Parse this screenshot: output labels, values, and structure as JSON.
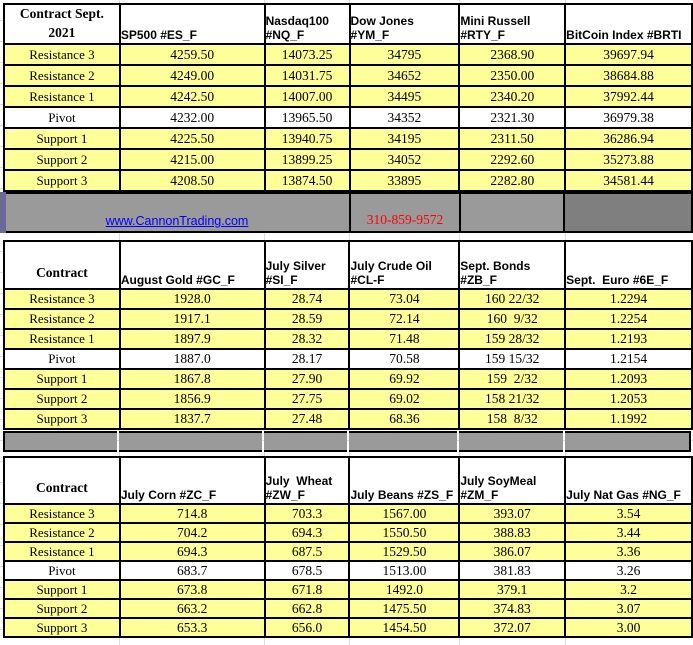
{
  "band": {
    "link_text": "www.CannonTrading.com",
    "phone": "310-859-9572"
  },
  "colors": {
    "row_fill": "#FFFF99",
    "band_gray": "#9A9A9A",
    "band_dark_gray": "#7F7F7F",
    "accent_purple": "#6A6A99",
    "link_blue": "#0000FF",
    "phone_red": "#FF0000",
    "border_black": "#000000"
  },
  "row_labels": [
    "Resistance 3",
    "Resistance 2",
    "Resistance 1",
    "Pivot",
    "Support 1",
    "Support 2",
    "Support 3"
  ],
  "tables": [
    {
      "corner": "Contract Sept.\n2021",
      "columns": [
        {
          "header": "SP500 #ES_F",
          "values": [
            "4259.50",
            "4249.00",
            "4242.50",
            "4232.00",
            "4225.50",
            "4215.00",
            "4208.50"
          ]
        },
        {
          "header": "Nasdaq100\n#NQ_F",
          "values": [
            "14073.25",
            "14031.75",
            "14007.00",
            "13965.50",
            "13940.75",
            "13899.25",
            "13874.50"
          ]
        },
        {
          "header": "Dow Jones\n#YM_F",
          "values": [
            "34795",
            "34652",
            "34495",
            "34352",
            "34195",
            "34052",
            "33895"
          ]
        },
        {
          "header": "Mini Russell\n#RTY_F",
          "values": [
            "2368.90",
            "2350.00",
            "2340.20",
            "2321.30",
            "2311.50",
            "2292.60",
            "2282.80"
          ]
        },
        {
          "header": "BitCoin Index #BRTI",
          "values": [
            "39697.94",
            "38684.88",
            "37992.44",
            "36979.38",
            "36286.94",
            "35273.88",
            "34581.44"
          ]
        }
      ]
    },
    {
      "corner": "Contract",
      "columns": [
        {
          "header": "August Gold #GC_F",
          "values": [
            "1928.0",
            "1917.1",
            "1897.9",
            "1887.0",
            "1867.8",
            "1856.9",
            "1837.7"
          ]
        },
        {
          "header": "July Silver\n#SI_F",
          "values": [
            "28.74",
            "28.59",
            "28.32",
            "28.17",
            "27.90",
            "27.75",
            "27.48"
          ]
        },
        {
          "header": "July Crude Oil\n#CL-F",
          "values": [
            "73.04",
            "72.14",
            "71.48",
            "70.58",
            "69.92",
            "69.02",
            "68.36"
          ]
        },
        {
          "header": "Sept. Bonds\n#ZB_F",
          "values": [
            "160 22/32",
            "160  9/32",
            "159 28/32",
            "159 15/32",
            "159  2/32",
            "158 21/32",
            "158  8/32"
          ]
        },
        {
          "header": "Sept.  Euro #6E_F",
          "values": [
            "1.2294",
            "1.2254",
            "1.2193",
            "1.2154",
            "1.2093",
            "1.2053",
            "1.1992"
          ]
        }
      ]
    },
    {
      "corner": "Contract",
      "columns": [
        {
          "header": "July Corn #ZC_F",
          "values": [
            "714.8",
            "704.2",
            "694.3",
            "683.7",
            "673.8",
            "663.2",
            "653.3"
          ]
        },
        {
          "header": "July  Wheat\n#ZW_F",
          "values": [
            "703.3",
            "694.3",
            "687.5",
            "678.5",
            "671.8",
            "662.8",
            "656.0"
          ]
        },
        {
          "header": "July Beans #ZS_F",
          "values": [
            "1567.00",
            "1550.50",
            "1529.50",
            "1513.00",
            "1492.0",
            "1475.50",
            "1454.50"
          ]
        },
        {
          "header": "July SoyMeal\n#ZM_F",
          "values": [
            "393.07",
            "388.83",
            "386.07",
            "381.83",
            "379.1",
            "374.83",
            "372.07"
          ]
        },
        {
          "header": "July Nat Gas #NG_F",
          "values": [
            "3.54",
            "3.44",
            "3.36",
            "3.26",
            "3.2",
            "3.07",
            "3.00"
          ]
        }
      ]
    }
  ]
}
